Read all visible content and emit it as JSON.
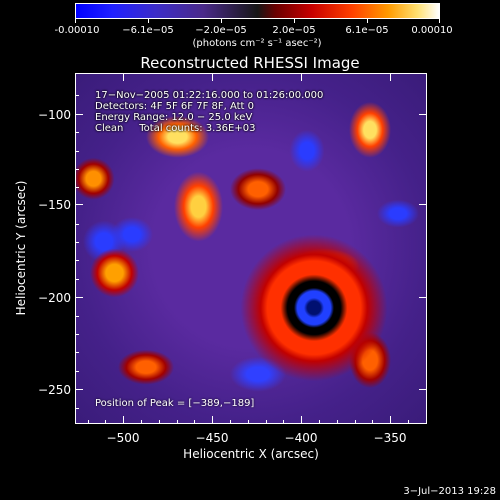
{
  "colorbar": {
    "tick_labels": [
      "-0.00010",
      "−6.1e−05",
      "−2.0e−05",
      "2.0e−05",
      "6.1e−05",
      "0.00010"
    ],
    "units": "(photons cm⁻² s⁻¹ asec⁻²)"
  },
  "title": "Reconstructed RHESSI Image",
  "annotations": {
    "time": "17−Nov−2005 01:22:16.000 to 01:26:00.000",
    "detectors": "Detectors: 4F 5F 6F 7F 8F, Att 0",
    "energy": "Energy Range: 12.0 − 25.0 keV",
    "method": "Clean     Total counts: 3.36E+03",
    "peak": "Position of Peak = [−389,−189]"
  },
  "axes": {
    "xlabel": "Heliocentric X (arcsec)",
    "ylabel": "Heliocentric Y (arcsec)",
    "x_ticks": [
      "−500",
      "−450",
      "−400",
      "−350"
    ],
    "y_ticks": [
      "−100",
      "−150",
      "−200",
      "−250"
    ]
  },
  "timestamp": "3−Jul−2013 19:28"
}
